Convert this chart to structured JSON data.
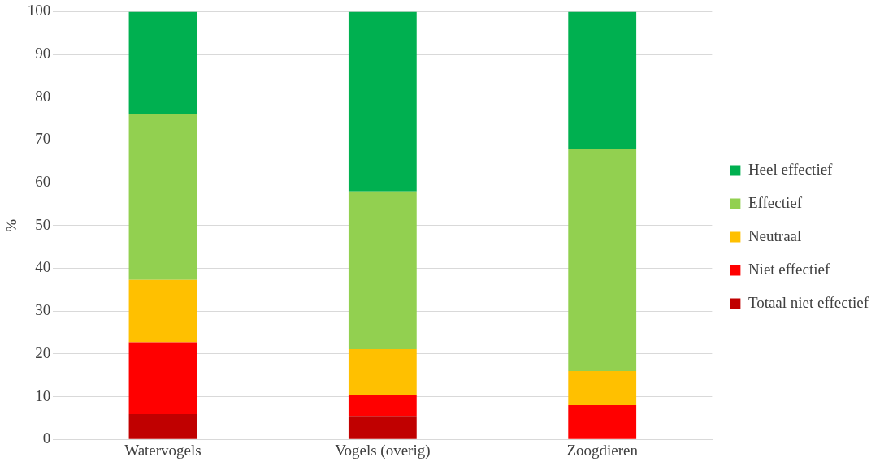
{
  "chart_data": {
    "type": "bar",
    "stacked": true,
    "ylabel": "%",
    "categories": [
      "Watervogels",
      "Vogels (overig)",
      "Zoogdieren"
    ],
    "series": [
      {
        "name": "Totaal niet effectief",
        "color": "#c00000",
        "values": [
          5.9,
          5.3,
          0
        ]
      },
      {
        "name": "Niet effectief",
        "color": "#ff0000",
        "values": [
          16.8,
          5.2,
          8
        ]
      },
      {
        "name": "Neutraal",
        "color": "#ffc000",
        "values": [
          14.6,
          10.6,
          8
        ]
      },
      {
        "name": "Effectief",
        "color": "#92d050",
        "values": [
          38.7,
          36.9,
          52
        ]
      },
      {
        "name": "Heel effectief",
        "color": "#00b050",
        "values": [
          24,
          42,
          32
        ]
      }
    ],
    "ylim": [
      0,
      100
    ],
    "yticks": [
      0,
      10,
      20,
      30,
      40,
      50,
      60,
      70,
      80,
      90,
      100
    ],
    "grid": "y",
    "legend": "right"
  }
}
